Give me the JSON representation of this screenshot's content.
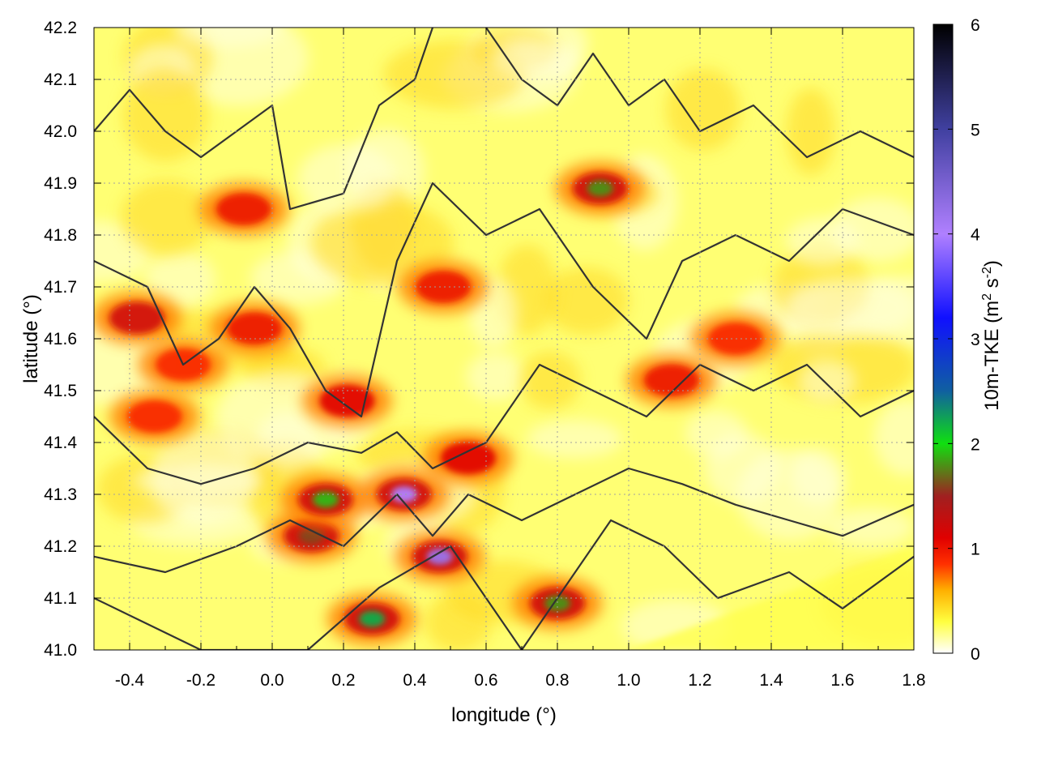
{
  "chart_data": {
    "type": "heatmap",
    "title": "",
    "xlabel": "longitude (°)",
    "ylabel": "latitude (°)",
    "colorbar_label": "10m-TKE (m² s⁻²)",
    "colorbar_label_parts": {
      "base": "10m-TKE (m",
      "sup1": "2",
      "mid": " s",
      "sup2": "-2",
      "end": ")"
    },
    "xlim": [
      -0.5,
      1.8
    ],
    "ylim": [
      41.0,
      42.2
    ],
    "clim": [
      0,
      6
    ],
    "grid": true,
    "x_ticks": [
      {
        "value": -0.4,
        "label": "-0.4"
      },
      {
        "value": -0.2,
        "label": "-0.2"
      },
      {
        "value": 0.0,
        "label": "0.0"
      },
      {
        "value": 0.2,
        "label": "0.2"
      },
      {
        "value": 0.4,
        "label": "0.4"
      },
      {
        "value": 0.6,
        "label": "0.6"
      },
      {
        "value": 0.8,
        "label": "0.8"
      },
      {
        "value": 1.0,
        "label": "1.0"
      },
      {
        "value": 1.2,
        "label": "1.2"
      },
      {
        "value": 1.4,
        "label": "1.4"
      },
      {
        "value": 1.6,
        "label": "1.6"
      },
      {
        "value": 1.8,
        "label": "1.8"
      }
    ],
    "y_ticks": [
      {
        "value": 41.0,
        "label": "41.0"
      },
      {
        "value": 41.1,
        "label": "41.1"
      },
      {
        "value": 41.2,
        "label": "41.2"
      },
      {
        "value": 41.3,
        "label": "41.3"
      },
      {
        "value": 41.4,
        "label": "41.4"
      },
      {
        "value": 41.5,
        "label": "41.5"
      },
      {
        "value": 41.6,
        "label": "41.6"
      },
      {
        "value": 41.7,
        "label": "41.7"
      },
      {
        "value": 41.8,
        "label": "41.8"
      },
      {
        "value": 41.9,
        "label": "41.9"
      },
      {
        "value": 42.0,
        "label": "42.0"
      },
      {
        "value": 42.1,
        "label": "42.1"
      },
      {
        "value": 42.2,
        "label": "42.2"
      }
    ],
    "colorbar_ticks": [
      {
        "value": 0,
        "label": "0"
      },
      {
        "value": 1,
        "label": "1"
      },
      {
        "value": 2,
        "label": "2"
      },
      {
        "value": 3,
        "label": "3"
      },
      {
        "value": 4,
        "label": "4"
      },
      {
        "value": 5,
        "label": "5"
      },
      {
        "value": 6,
        "label": "6"
      }
    ],
    "colormap": [
      {
        "value": 0.0,
        "color": "#ffffff"
      },
      {
        "value": 0.3,
        "color": "#ffff40"
      },
      {
        "value": 0.6,
        "color": "#ffb000"
      },
      {
        "value": 0.85,
        "color": "#ff3000"
      },
      {
        "value": 1.1,
        "color": "#e00000"
      },
      {
        "value": 1.5,
        "color": "#a02020"
      },
      {
        "value": 2.0,
        "color": "#10e010"
      },
      {
        "value": 2.5,
        "color": "#1060a0"
      },
      {
        "value": 3.2,
        "color": "#1010ff"
      },
      {
        "value": 4.0,
        "color": "#b080ff"
      },
      {
        "value": 5.0,
        "color": "#4040a0"
      },
      {
        "value": 6.0,
        "color": "#000000"
      }
    ],
    "high_tke_regions": [
      {
        "lon": -0.38,
        "lat": 41.64,
        "tke": 1.3
      },
      {
        "lon": -0.25,
        "lat": 41.55,
        "tke": 0.9
      },
      {
        "lon": -0.33,
        "lat": 41.45,
        "tke": 0.9
      },
      {
        "lon": -0.05,
        "lat": 41.62,
        "tke": 1.0
      },
      {
        "lon": -0.08,
        "lat": 41.85,
        "tke": 1.0
      },
      {
        "lon": 0.21,
        "lat": 41.48,
        "tke": 1.1
      },
      {
        "lon": 0.11,
        "lat": 41.22,
        "tke": 1.6
      },
      {
        "lon": 0.15,
        "lat": 41.29,
        "tke": 1.9
      },
      {
        "lon": 0.37,
        "lat": 41.3,
        "tke": 4.0
      },
      {
        "lon": 0.47,
        "lat": 41.18,
        "tke": 4.2
      },
      {
        "lon": 0.28,
        "lat": 41.06,
        "tke": 2.2
      },
      {
        "lon": 0.55,
        "lat": 41.37,
        "tke": 1.1
      },
      {
        "lon": 0.48,
        "lat": 41.7,
        "tke": 1.0
      },
      {
        "lon": 0.92,
        "lat": 41.89,
        "tke": 1.8
      },
      {
        "lon": 0.8,
        "lat": 41.09,
        "tke": 1.8
      },
      {
        "lon": 1.12,
        "lat": 41.52,
        "tke": 1.0
      },
      {
        "lon": 1.3,
        "lat": 41.6,
        "tke": 0.9
      }
    ]
  }
}
